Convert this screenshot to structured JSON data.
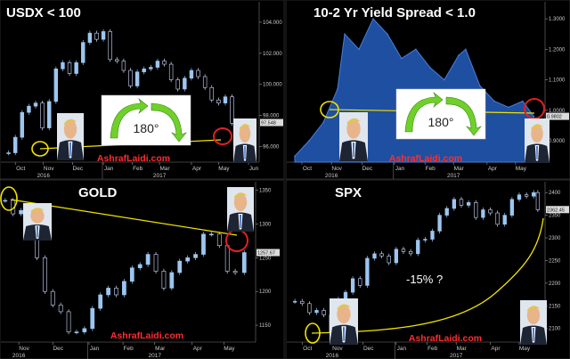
{
  "chart_data": [
    {
      "type": "candlestick",
      "title": "USDX  < 100",
      "y_ticks": [
        "104.000",
        "102.000",
        "100.000",
        "98.000",
        "96.000"
      ],
      "ylim": [
        95.0,
        105.2
      ],
      "last_label": "97.548",
      "x_ticks": [
        "Oct",
        "Nov",
        "Dec",
        "Jan",
        "Feb",
        "Mar",
        "Apr",
        "May",
        "Jun"
      ],
      "years": [
        "2016",
        "2017"
      ],
      "annotation": "180°",
      "watermark": "AshrafLaidi.com",
      "points": [
        {
          "x": "2016-09-26",
          "y": 95.6
        },
        {
          "x": "2016-10-03",
          "y": 96.6
        },
        {
          "x": "2016-10-10",
          "y": 98.2
        },
        {
          "x": "2016-10-17",
          "y": 98.6
        },
        {
          "x": "2016-10-24",
          "y": 98.8
        },
        {
          "x": "2016-10-31",
          "y": 97.2
        },
        {
          "x": "2016-11-07",
          "y": 98.9
        },
        {
          "x": "2016-11-14",
          "y": 101.0
        },
        {
          "x": "2016-11-21",
          "y": 101.4
        },
        {
          "x": "2016-11-28",
          "y": 100.7
        },
        {
          "x": "2016-12-05",
          "y": 101.4
        },
        {
          "x": "2016-12-12",
          "y": 102.7
        },
        {
          "x": "2016-12-19",
          "y": 103.3
        },
        {
          "x": "2016-12-26",
          "y": 102.9
        },
        {
          "x": "2017-01-02",
          "y": 103.4
        },
        {
          "x": "2017-01-09",
          "y": 101.6
        },
        {
          "x": "2017-01-16",
          "y": 101.5
        },
        {
          "x": "2017-01-23",
          "y": 100.9
        },
        {
          "x": "2017-01-30",
          "y": 99.9
        },
        {
          "x": "2017-02-06",
          "y": 100.8
        },
        {
          "x": "2017-02-13",
          "y": 101.0
        },
        {
          "x": "2017-02-20",
          "y": 101.1
        },
        {
          "x": "2017-02-27",
          "y": 101.5
        },
        {
          "x": "2017-03-06",
          "y": 101.3
        },
        {
          "x": "2017-03-13",
          "y": 100.3
        },
        {
          "x": "2017-03-20",
          "y": 99.7
        },
        {
          "x": "2017-03-27",
          "y": 100.4
        },
        {
          "x": "2017-04-03",
          "y": 100.9
        },
        {
          "x": "2017-04-10",
          "y": 100.5
        },
        {
          "x": "2017-04-17",
          "y": 99.8
        },
        {
          "x": "2017-04-24",
          "y": 99.0
        },
        {
          "x": "2017-05-01",
          "y": 98.8
        },
        {
          "x": "2017-05-08",
          "y": 99.2
        },
        {
          "x": "2017-05-15",
          "y": 97.5
        }
      ]
    },
    {
      "type": "area",
      "title": "10-2 Yr Yield Spread < 1.0",
      "y_ticks": [
        "1.3000",
        "1.2000",
        "1.1000",
        "1.0000",
        "0.9000"
      ],
      "ylim": [
        0.83,
        1.35
      ],
      "last_label": "0.9802",
      "x_ticks": [
        "Oct",
        "Nov",
        "Dec",
        "Jan",
        "Feb",
        "Mar",
        "Apr",
        "May"
      ],
      "years": [
        "2016",
        "2017"
      ],
      "annotation": "180°",
      "watermark": "AshrafLaidi.com",
      "points": [
        {
          "x": "2016-09-26",
          "y": 0.85
        },
        {
          "x": "2016-10-10",
          "y": 0.9
        },
        {
          "x": "2016-10-24",
          "y": 0.96
        },
        {
          "x": "2016-11-07",
          "y": 1.07
        },
        {
          "x": "2016-11-14",
          "y": 1.25
        },
        {
          "x": "2016-11-28",
          "y": 1.2
        },
        {
          "x": "2016-12-12",
          "y": 1.3
        },
        {
          "x": "2016-12-26",
          "y": 1.25
        },
        {
          "x": "2017-01-09",
          "y": 1.17
        },
        {
          "x": "2017-01-23",
          "y": 1.2
        },
        {
          "x": "2017-02-06",
          "y": 1.14
        },
        {
          "x": "2017-02-20",
          "y": 1.1
        },
        {
          "x": "2017-03-06",
          "y": 1.18
        },
        {
          "x": "2017-03-13",
          "y": 1.2
        },
        {
          "x": "2017-03-27",
          "y": 1.08
        },
        {
          "x": "2017-04-10",
          "y": 1.03
        },
        {
          "x": "2017-04-24",
          "y": 1.01
        },
        {
          "x": "2017-05-08",
          "y": 1.03
        },
        {
          "x": "2017-05-19",
          "y": 0.98
        }
      ]
    },
    {
      "type": "candlestick",
      "title": "GOLD",
      "y_ticks": [
        "1350",
        "1300",
        "1250",
        "1200",
        "1150"
      ],
      "ylim": [
        1125,
        1360
      ],
      "last_label": "1257.67",
      "x_ticks": [
        "Nov",
        "Dec",
        "Jan",
        "Feb",
        "Mar",
        "Apr",
        "May"
      ],
      "years": [
        "2016",
        "2017"
      ],
      "watermark": "AshrafLaidi.com",
      "points": [
        {
          "x": "2016-10-20",
          "y": 1335
        },
        {
          "x": "2016-10-27",
          "y": 1315
        },
        {
          "x": "2016-11-03",
          "y": 1320
        },
        {
          "x": "2016-11-10",
          "y": 1290
        },
        {
          "x": "2016-11-17",
          "y": 1250
        },
        {
          "x": "2016-11-24",
          "y": 1200
        },
        {
          "x": "2016-12-01",
          "y": 1180
        },
        {
          "x": "2016-12-08",
          "y": 1170
        },
        {
          "x": "2016-12-15",
          "y": 1140
        },
        {
          "x": "2016-12-22",
          "y": 1140
        },
        {
          "x": "2016-12-29",
          "y": 1145
        },
        {
          "x": "2017-01-05",
          "y": 1175
        },
        {
          "x": "2017-01-12",
          "y": 1195
        },
        {
          "x": "2017-01-19",
          "y": 1205
        },
        {
          "x": "2017-01-26",
          "y": 1195
        },
        {
          "x": "2017-02-02",
          "y": 1215
        },
        {
          "x": "2017-02-09",
          "y": 1235
        },
        {
          "x": "2017-02-16",
          "y": 1240
        },
        {
          "x": "2017-02-23",
          "y": 1255
        },
        {
          "x": "2017-03-02",
          "y": 1230
        },
        {
          "x": "2017-03-09",
          "y": 1205
        },
        {
          "x": "2017-03-16",
          "y": 1228
        },
        {
          "x": "2017-03-23",
          "y": 1245
        },
        {
          "x": "2017-03-30",
          "y": 1250
        },
        {
          "x": "2017-04-06",
          "y": 1255
        },
        {
          "x": "2017-04-13",
          "y": 1285
        },
        {
          "x": "2017-04-20",
          "y": 1285
        },
        {
          "x": "2017-04-27",
          "y": 1268
        },
        {
          "x": "2017-05-04",
          "y": 1230
        },
        {
          "x": "2017-05-11",
          "y": 1228
        },
        {
          "x": "2017-05-19",
          "y": 1257.67
        }
      ]
    },
    {
      "type": "candlestick",
      "title": "SPX",
      "y_ticks": [
        "2400",
        "2350",
        "2300",
        "2250",
        "2200",
        "2150",
        "2100"
      ],
      "ylim": [
        2070,
        2420
      ],
      "last_label": "2362.45",
      "x_ticks": [
        "Oct",
        "Nov",
        "Dec",
        "Jan",
        "Feb",
        "Mar",
        "Apr",
        "May"
      ],
      "years": [
        "2016",
        "2017"
      ],
      "annotation": "-15%  ?",
      "watermark": "AshrafLaidi.com",
      "points": [
        {
          "x": "2016-09-26",
          "y": 2160
        },
        {
          "x": "2016-10-03",
          "y": 2155
        },
        {
          "x": "2016-10-10",
          "y": 2135
        },
        {
          "x": "2016-10-17",
          "y": 2140
        },
        {
          "x": "2016-10-24",
          "y": 2130
        },
        {
          "x": "2016-10-31",
          "y": 2090
        },
        {
          "x": "2016-11-07",
          "y": 2165
        },
        {
          "x": "2016-11-14",
          "y": 2180
        },
        {
          "x": "2016-11-21",
          "y": 2210
        },
        {
          "x": "2016-11-28",
          "y": 2195
        },
        {
          "x": "2016-12-05",
          "y": 2255
        },
        {
          "x": "2016-12-12",
          "y": 2265
        },
        {
          "x": "2016-12-19",
          "y": 2260
        },
        {
          "x": "2016-12-26",
          "y": 2245
        },
        {
          "x": "2017-01-02",
          "y": 2275
        },
        {
          "x": "2017-01-09",
          "y": 2270
        },
        {
          "x": "2017-01-16",
          "y": 2265
        },
        {
          "x": "2017-01-23",
          "y": 2295
        },
        {
          "x": "2017-01-30",
          "y": 2297
        },
        {
          "x": "2017-02-06",
          "y": 2315
        },
        {
          "x": "2017-02-13",
          "y": 2350
        },
        {
          "x": "2017-02-20",
          "y": 2365
        },
        {
          "x": "2017-02-27",
          "y": 2385
        },
        {
          "x": "2017-03-06",
          "y": 2372
        },
        {
          "x": "2017-03-13",
          "y": 2378
        },
        {
          "x": "2017-03-20",
          "y": 2345
        },
        {
          "x": "2017-03-27",
          "y": 2362
        },
        {
          "x": "2017-04-03",
          "y": 2355
        },
        {
          "x": "2017-04-10",
          "y": 2330
        },
        {
          "x": "2017-04-17",
          "y": 2350
        },
        {
          "x": "2017-04-24",
          "y": 2385
        },
        {
          "x": "2017-05-01",
          "y": 2395
        },
        {
          "x": "2017-05-08",
          "y": 2392
        },
        {
          "x": "2017-05-15",
          "y": 2400
        },
        {
          "x": "2017-05-19",
          "y": 2362
        }
      ]
    }
  ],
  "colors": {
    "background": "#000000",
    "up": "#9cc6f0",
    "down": "#d0dcff",
    "area_fill": "#1f4fa0",
    "area_line": "#4a7ed8",
    "trendline": "#f2e300",
    "circle_red": "#e02020",
    "circle_yellow": "#f2e300",
    "arrow_green": "#70d02a",
    "watermark": "#ff2d2d"
  }
}
